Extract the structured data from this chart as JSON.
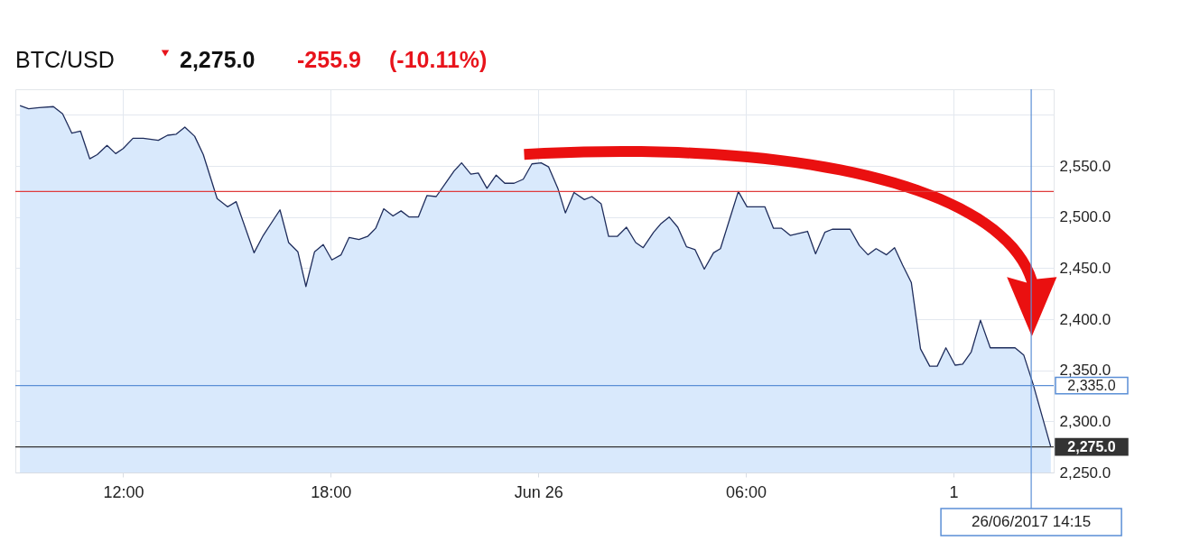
{
  "chart_data": {
    "type": "area",
    "title": "BTC/USD",
    "annotations": [
      "2,275.0",
      "-255.9",
      "(-10.11%)"
    ],
    "x": [
      "2017-06-25T09:01",
      "2017-06-25T09:16",
      "2017-06-25T09:34",
      "2017-06-25T09:59",
      "2017-06-25T10:15",
      "2017-06-25T10:31",
      "2017-06-25T10:46",
      "2017-06-25T11:02",
      "2017-06-25T11:15",
      "2017-06-25T11:32",
      "2017-06-25T11:47",
      "2017-06-25T12:00",
      "2017-06-25T12:17",
      "2017-06-25T12:35",
      "2017-06-25T13:01",
      "2017-06-25T13:17",
      "2017-06-25T13:32",
      "2017-06-25T13:47",
      "2017-06-25T14:04",
      "2017-06-25T14:19",
      "2017-06-25T14:43",
      "2017-06-25T15:01",
      "2017-06-25T15:16",
      "2017-06-25T15:47",
      "2017-06-25T16:03",
      "2017-06-25T16:32",
      "2017-06-25T16:47",
      "2017-06-25T17:03",
      "2017-06-25T17:17",
      "2017-06-25T17:32",
      "2017-06-25T17:47",
      "2017-06-25T18:02",
      "2017-06-25T18:18",
      "2017-06-25T18:32",
      "2017-06-25T18:49",
      "2017-06-25T19:04",
      "2017-06-25T19:18",
      "2017-06-25T19:32",
      "2017-06-25T19:48",
      "2017-06-25T20:02",
      "2017-06-25T20:16",
      "2017-06-25T20:32",
      "2017-06-25T20:47",
      "2017-06-25T21:03",
      "2017-06-25T21:19",
      "2017-06-25T21:34",
      "2017-06-25T21:47",
      "2017-06-25T22:03",
      "2017-06-25T22:16",
      "2017-06-25T22:31",
      "2017-06-25T22:47",
      "2017-06-25T23:02",
      "2017-06-25T23:18",
      "2017-06-25T23:34",
      "2017-06-25T23:49",
      "2017-06-26T00:05",
      "2017-06-26T00:18",
      "2017-06-26T00:34",
      "2017-06-26T00:47",
      "2017-06-26T01:02",
      "2017-06-26T01:20",
      "2017-06-26T01:33",
      "2017-06-26T01:49",
      "2017-06-26T02:02",
      "2017-06-26T02:17",
      "2017-06-26T02:33",
      "2017-06-26T02:49",
      "2017-06-26T03:02",
      "2017-06-26T03:20",
      "2017-06-26T03:32",
      "2017-06-26T03:47",
      "2017-06-26T04:02",
      "2017-06-26T04:17",
      "2017-06-26T04:32",
      "2017-06-26T04:48",
      "2017-06-26T05:04",
      "2017-06-26T05:16",
      "2017-06-26T05:32",
      "2017-06-26T05:47",
      "2017-06-26T06:02",
      "2017-06-26T06:33",
      "2017-06-26T06:48",
      "2017-06-26T07:02",
      "2017-06-26T07:17",
      "2017-06-26T07:47",
      "2017-06-26T08:01",
      "2017-06-26T08:17",
      "2017-06-26T08:30",
      "2017-06-26T09:01",
      "2017-06-26T09:17",
      "2017-06-26T09:32",
      "2017-06-26T09:46",
      "2017-06-26T10:04",
      "2017-06-26T10:18",
      "2017-06-26T10:32",
      "2017-06-26T10:47",
      "2017-06-26T11:03",
      "2017-06-26T11:19",
      "2017-06-26T11:32",
      "2017-06-26T11:47",
      "2017-06-26T12:03",
      "2017-06-26T12:16",
      "2017-06-26T12:31",
      "2017-06-26T12:47",
      "2017-06-26T13:04",
      "2017-06-26T13:47",
      "2017-06-26T14:02",
      "2017-06-26T14:18",
      "2017-06-26T14:49"
    ],
    "series": [
      {
        "color": "#1f2d5c",
        "values": [
          2609,
          2606,
          2607,
          2608,
          2601,
          2582,
          2584,
          2557,
          2561,
          2570,
          2562,
          2567,
          2577,
          2577,
          2575,
          2580,
          2581,
          2588,
          2579,
          2561,
          2518,
          2510,
          2515,
          2465,
          2482,
          2507,
          2475,
          2466,
          2432,
          2466,
          2473,
          2458,
          2463,
          2480,
          2478,
          2481,
          2489,
          2508,
          2501,
          2506,
          2500,
          2500,
          2521,
          2520,
          2533,
          2545,
          2553,
          2542,
          2543,
          2528,
          2541,
          2533,
          2533,
          2537,
          2552,
          2553,
          2549,
          2528,
          2504,
          2524,
          2517,
          2520,
          2513,
          2481,
          2481,
          2490,
          2475,
          2470,
          2485,
          2493,
          2500,
          2490,
          2471,
          2468,
          2449,
          2465,
          2469,
          2498,
          2525,
          2510,
          2510,
          2489,
          2489,
          2482,
          2486,
          2464,
          2485,
          2488,
          2488,
          2472,
          2463,
          2469,
          2463,
          2470,
          2453,
          2436,
          2371,
          2354,
          2354,
          2372,
          2355,
          2356,
          2368,
          2399,
          2372,
          2372,
          2365,
          2337,
          2275
        ]
      }
    ],
    "xlim": [
      "2017-06-25T08:53",
      "2017-06-26T14:54"
    ],
    "ylim": [
      2250,
      2625
    ],
    "xticks": [
      {
        "value": "2017-06-25T12:00",
        "label": "12:00"
      },
      {
        "value": "2017-06-25T18:00",
        "label": "18:00"
      },
      {
        "value": "2017-06-26T00:00",
        "label": "Jun 26"
      },
      {
        "value": "2017-06-26T06:00",
        "label": "06:00"
      },
      {
        "value": "2017-06-26T12:00",
        "label": "1"
      }
    ],
    "yticks": [
      {
        "value": 2250,
        "label": "2,250.0"
      },
      {
        "value": 2300,
        "label": "2,300.0"
      },
      {
        "value": 2350,
        "label": "2,350.0"
      },
      {
        "value": 2400,
        "label": "2,400.0"
      },
      {
        "value": 2450,
        "label": "2,450.0"
      },
      {
        "value": 2500,
        "label": "2,500.0"
      },
      {
        "value": 2550,
        "label": "2,550.0"
      },
      {
        "value": 2600,
        "label": null
      }
    ],
    "ref_lines": [
      {
        "axis": "y",
        "value": 2525,
        "color": "#e03c3c"
      },
      {
        "axis": "y",
        "value": 2335,
        "label": "2,335.0",
        "color": "#5b8fd6"
      },
      {
        "axis": "y",
        "value": 2275,
        "label": "2,275.0",
        "color": "#333333"
      },
      {
        "axis": "x",
        "value": "2017-06-26T14:15",
        "label": "26/06/2017 14:15",
        "color": "#5b8fd6"
      }
    ],
    "grid": true
  }
}
